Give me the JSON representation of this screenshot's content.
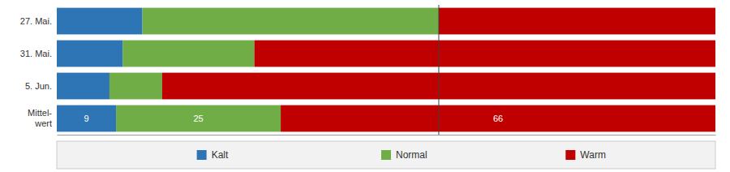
{
  "chart_data": {
    "type": "bar",
    "orientation": "horizontal",
    "stacked": true,
    "categories": [
      "27. Mai.",
      "31. Mai.",
      "5. Jun.",
      "Mittel-\nwert"
    ],
    "series": [
      {
        "name": "Kalt",
        "color": "#2E75B6",
        "values": [
          13,
          10,
          8,
          9
        ],
        "value_labels": [
          null,
          null,
          null,
          "9"
        ]
      },
      {
        "name": "Normal",
        "color": "#70AD47",
        "values": [
          45,
          20,
          8,
          25
        ],
        "value_labels": [
          null,
          null,
          null,
          "25"
        ]
      },
      {
        "name": "Warm",
        "color": "#C00000",
        "values": [
          42,
          70,
          84,
          66
        ],
        "value_labels": [
          null,
          null,
          null,
          "66"
        ]
      }
    ],
    "xlim": [
      0,
      100
    ],
    "reference_line": {
      "value": 58,
      "color": "#404040"
    },
    "tick_labels": "y",
    "grid": false,
    "legend": "bottom"
  }
}
